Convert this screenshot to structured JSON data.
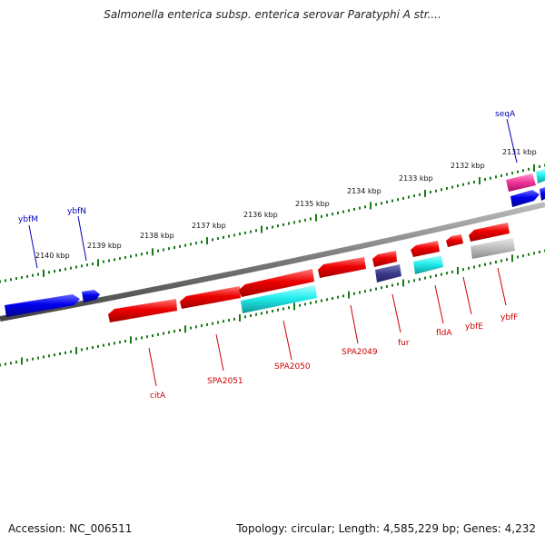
{
  "title": "Salmonella enterica subsp. enterica serovar Paratyphi A str....",
  "accession": "Accession: NC_006511",
  "stats": "Topology: circular; Length: 4,585,229 bp; Genes: 4,232",
  "colors": {
    "backbone": "#7a7a7a",
    "tick": "#1a7a1a",
    "forward_label": "#0000bb",
    "reverse_label": "#cc0000",
    "cds_red": "#ee0000",
    "cds_blue": "#0000ee",
    "cds_cyan": "#33eeee",
    "cds_navy": "#3a3a8a",
    "cds_pink": "#ee3399",
    "cds_gray": "#b8b8b8"
  },
  "kbp_labels": [
    "2131 kbp",
    "2132 kbp",
    "2133 kbp",
    "2134 kbp",
    "2135 kbp",
    "2136 kbp",
    "2137 kbp",
    "2138 kbp",
    "2139 kbp",
    "2140 kbp"
  ],
  "forward_genes": [
    {
      "name": "ybfM",
      "label": "ybfM"
    },
    {
      "name": "ybfN",
      "label": "ybfN"
    },
    {
      "name": "seqA",
      "label": "seqA"
    }
  ],
  "reverse_genes": [
    {
      "name": "citA",
      "label": "citA"
    },
    {
      "name": "SPA2051",
      "label": "SPA2051"
    },
    {
      "name": "SPA2050",
      "label": "SPA2050"
    },
    {
      "name": "SPA2049",
      "label": "SPA2049"
    },
    {
      "name": "fur",
      "label": "fur"
    },
    {
      "name": "fldA",
      "label": "fldA"
    },
    {
      "name": "ybfE",
      "label": "ybfE"
    },
    {
      "name": "ybfF",
      "label": "ybfF"
    }
  ]
}
